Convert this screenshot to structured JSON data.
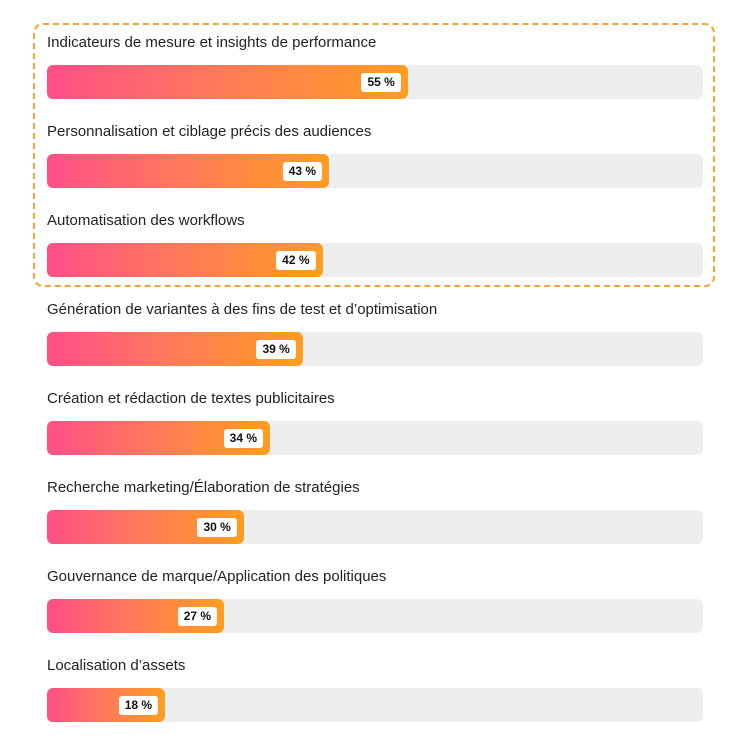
{
  "chart_data": {
    "type": "bar",
    "orientation": "horizontal",
    "unit": "%",
    "xlim": [
      0,
      100
    ],
    "highlighted_categories": [
      "Indicateurs de mesure et insights de performance",
      "Personnalisation et ciblage précis des audiences",
      "Automatisation des workflows"
    ],
    "categories": [
      "Indicateurs de mesure et insights de performance",
      "Personnalisation et ciblage précis des audiences",
      "Automatisation des workflows",
      "Génération de variantes à des fins de test et d’optimisation",
      "Création et rédaction de textes publicitaires",
      "Recherche marketing/Élaboration de stratégies",
      "Gouvernance de marque/Application des politiques",
      "Localisation d’assets"
    ],
    "values": [
      55,
      43,
      42,
      39,
      34,
      30,
      27,
      18
    ],
    "value_labels": [
      "55 %",
      "43 %",
      "42 %",
      "39 %",
      "34 %",
      "30 %",
      "27 %",
      "18 %"
    ],
    "colors": {
      "gradient_start": "#ff4f88",
      "gradient_end": "#ff9d1f",
      "track": "#eeeeee",
      "highlight_border": "#f7a233",
      "badge_background": "#ffffff",
      "label_text": "#222222"
    },
    "grid": false,
    "legend": "none"
  }
}
